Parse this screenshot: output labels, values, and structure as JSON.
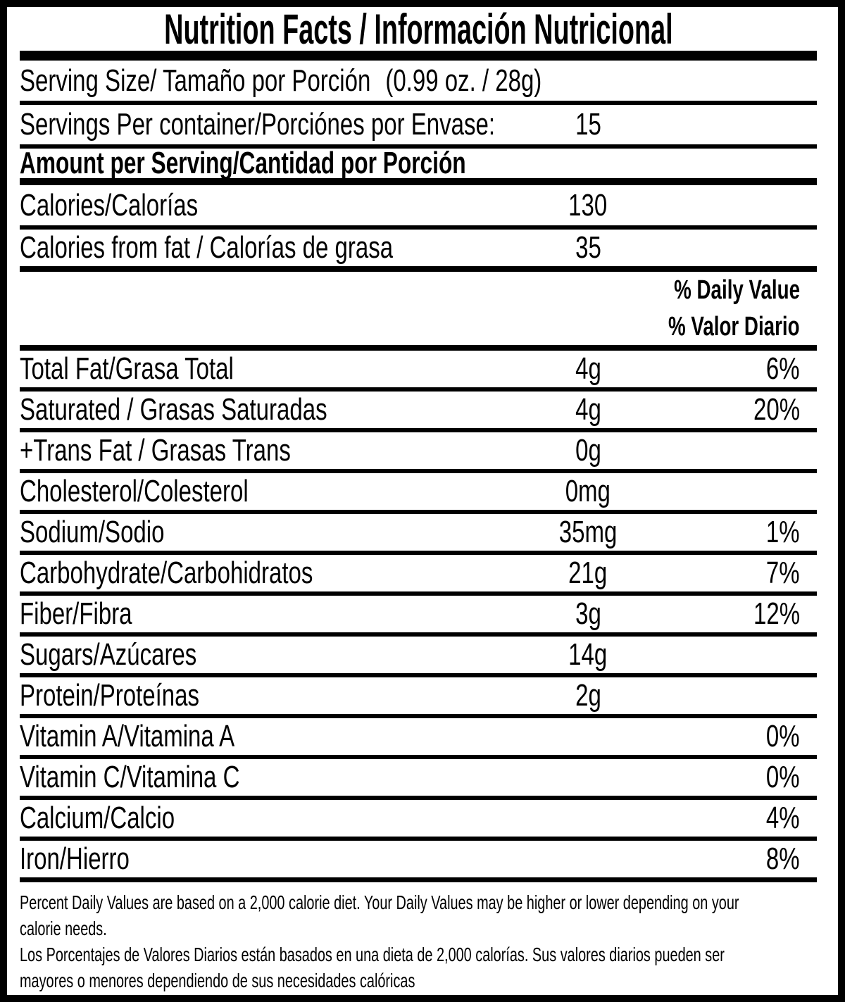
{
  "title": "Nutrition Facts / Información Nutricional",
  "serving": {
    "size_label": "Serving Size/ Tamaño por Porción",
    "size_value": "(0.99 oz. / 28g)",
    "per_container_label": "Servings Per container/Porciónes por Envase:",
    "per_container_value": "15"
  },
  "amount_header": "Amount per Serving/Cantidad por Porción",
  "energy_rows": [
    {
      "label": "Calories/Calorías",
      "value": "130"
    },
    {
      "label": "Calories from fat / Calorías de grasa",
      "value": "35"
    }
  ],
  "dv_header": {
    "en": "% Daily Value",
    "es": "% Valor Diario"
  },
  "rows": [
    {
      "label": "Total Fat/Grasa Total",
      "value": "4g",
      "pct": "6%"
    },
    {
      "label": "Saturated / Grasas Saturadas",
      "value": "4g",
      "pct": "20%"
    },
    {
      "label": "+Trans Fat / Grasas Trans",
      "value": "0g",
      "pct": ""
    },
    {
      "label": "Cholesterol/Colesterol",
      "value": "0mg",
      "pct": ""
    },
    {
      "label": "Sodium/Sodio",
      "value": "35mg",
      "pct": "1%"
    },
    {
      "label": "Carbohydrate/Carbohidratos",
      "value": "21g",
      "pct": "7%"
    },
    {
      "label": "Fiber/Fibra",
      "value": "3g",
      "pct": "12%"
    },
    {
      "label": "Sugars/Azúcares",
      "value": "14g",
      "pct": ""
    },
    {
      "label": "Protein/Proteínas",
      "value": "2g",
      "pct": ""
    },
    {
      "label": "Vitamin A/Vitamina A",
      "value": "",
      "pct": "0%"
    },
    {
      "label": "Vitamin C/Vitamina C",
      "value": "",
      "pct": "0%"
    },
    {
      "label": "Calcium/Calcio",
      "value": "",
      "pct": "4%"
    },
    {
      "label": "Iron/Hierro",
      "value": "",
      "pct": "8%"
    }
  ],
  "footnote": {
    "en": "Percent Daily Values are based on a 2,000 calorie diet. Your Daily Values may be higher or lower depending on your\ncalorie needs.",
    "es": "Los Porcentajes de Valores Diarios están basados en una dieta de 2,000 calorías. Sus valores diarios pueden ser\nmayores o menores dependiendo de sus necesidades calóricas"
  },
  "colors": {
    "ink": "#000000",
    "paper": "#ffffff"
  }
}
